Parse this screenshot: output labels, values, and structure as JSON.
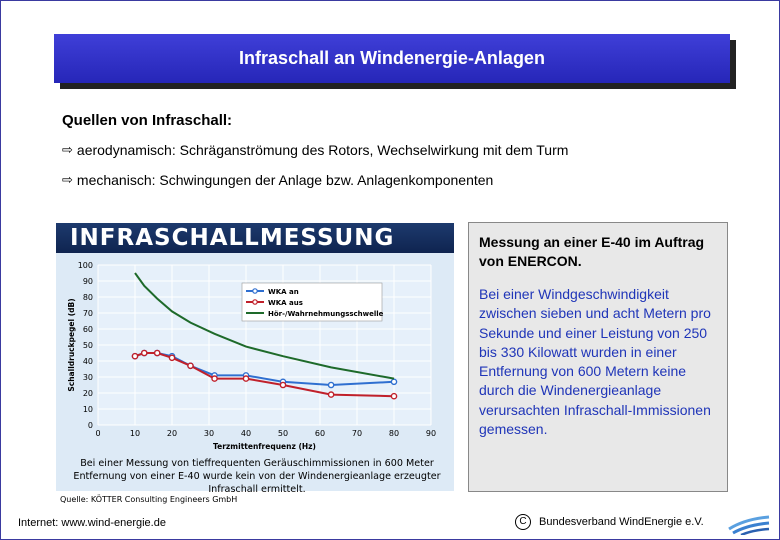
{
  "slide": {
    "title": "Infraschall an Windenergie-Anlagen",
    "sources_heading": "Quellen von Infraschall:",
    "bullets": [
      "aerodynamisch: Schräganströmung des Rotors, Wechselwirkung mit dem Turm",
      "mechanisch: Schwingungen der Anlage bzw. Anlagenkomponenten"
    ],
    "info_heading": "Messung an einer E-40 im Auftrag von ENERCON.",
    "info_body": "Bei einer Windgeschwindigkeit zwischen sieben und acht Metern pro Sekunde und einer Leistung von 250 bis 330 Kilowatt wurden in einer Entfernung von 600 Metern keine durch die Windenergieanlage verursachten Infraschall-Immissionen gemessen.",
    "source_note": "Quelle: KÖTTER Consulting Engineers GmbH"
  },
  "footer": {
    "website": "Internet: www.wind-energie.de",
    "copyright_symbol": "C",
    "org": "Bundesverband WindEnergie e.V."
  },
  "icons": {
    "bullet": "arrow-right-outline-icon",
    "logo": "bwe-wind-logo-icon"
  },
  "chart_data": {
    "type": "line",
    "title": "INFRASCHALLMESSUNG",
    "xlabel": "Terzmittenfrequenz (Hz)",
    "ylabel": "Schalldruckpegel (dB)",
    "xlim": [
      0,
      90
    ],
    "ylim": [
      0,
      100
    ],
    "x_ticks": [
      0,
      10,
      20,
      30,
      40,
      50,
      60,
      70,
      80,
      90
    ],
    "y_ticks": [
      0,
      10,
      20,
      30,
      40,
      50,
      60,
      70,
      80,
      90,
      100
    ],
    "grid": true,
    "legend_position": "top-right",
    "series": [
      {
        "name": "WKA an",
        "color": "#2f6fd0",
        "markers": true,
        "x": [
          10,
          12.5,
          16,
          20,
          25,
          31.5,
          40,
          50,
          63,
          80
        ],
        "y": [
          43,
          45,
          45,
          43,
          37,
          31,
          31,
          27,
          25,
          27
        ]
      },
      {
        "name": "WKA aus",
        "color": "#c0202a",
        "markers": true,
        "x": [
          10,
          12.5,
          16,
          20,
          25,
          31.5,
          40,
          50,
          63,
          80
        ],
        "y": [
          43,
          45,
          45,
          42,
          37,
          29,
          29,
          25,
          19,
          18
        ]
      },
      {
        "name": "Hör-/Wahrnehmungsschwelle",
        "color": "#1e6a2a",
        "markers": false,
        "x": [
          10,
          12.5,
          16,
          20,
          25,
          31.5,
          40,
          50,
          63,
          80
        ],
        "y": [
          95,
          87,
          79,
          71,
          64,
          57,
          49,
          43,
          36,
          29
        ]
      }
    ],
    "caption": "Bei einer Messung von tieffrequenten Geräuschimmissionen in 600 Meter Entfernung von einer E-40 wurde kein von der Windenergieanlage erzeugter Infraschall ermittelt."
  }
}
